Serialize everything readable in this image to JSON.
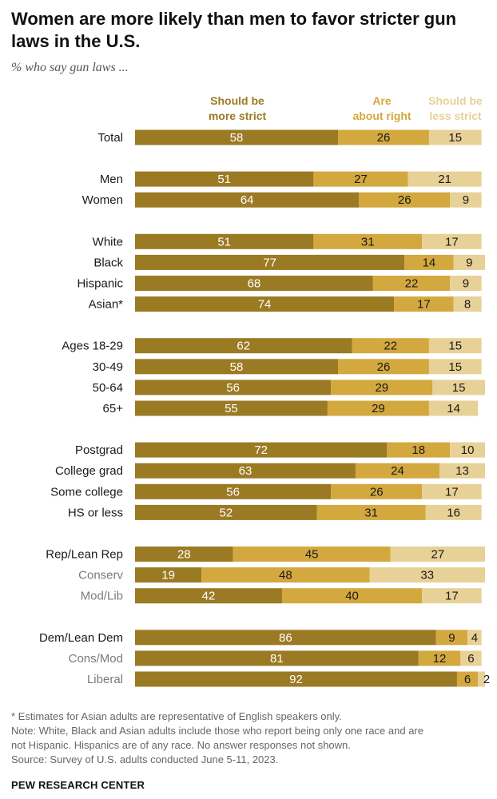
{
  "title": "Women are more likely than men to favor stricter gun laws in the U.S.",
  "subtitle": "% who say gun laws ...",
  "colors": {
    "strict": "#9b7a24",
    "right": "#d3a83e",
    "less": "#e8d197",
    "label_muted": "#7a7a7a"
  },
  "chart_data": {
    "type": "bar",
    "orientation": "horizontal",
    "stacked": true,
    "series": [
      {
        "name": "Should be more strict",
        "header": [
          "Should be",
          "more strict"
        ]
      },
      {
        "name": "Are about right",
        "header": [
          "Are",
          "about right"
        ]
      },
      {
        "name": "Should be less strict",
        "header": [
          "Should be",
          "less strict"
        ]
      }
    ],
    "rows": [
      {
        "label": "Total",
        "values": [
          58,
          26,
          15
        ],
        "group": 0,
        "muted": false
      },
      {
        "label": "Men",
        "values": [
          51,
          27,
          21
        ],
        "group": 1,
        "muted": false
      },
      {
        "label": "Women",
        "values": [
          64,
          26,
          9
        ],
        "group": 1,
        "muted": false
      },
      {
        "label": "White",
        "values": [
          51,
          31,
          17
        ],
        "group": 2,
        "muted": false
      },
      {
        "label": "Black",
        "values": [
          77,
          14,
          9
        ],
        "group": 2,
        "muted": false
      },
      {
        "label": "Hispanic",
        "values": [
          68,
          22,
          9
        ],
        "group": 2,
        "muted": false
      },
      {
        "label": "Asian*",
        "values": [
          74,
          17,
          8
        ],
        "group": 2,
        "muted": false
      },
      {
        "label": "Ages 18-29",
        "values": [
          62,
          22,
          15
        ],
        "group": 3,
        "muted": false
      },
      {
        "label": "30-49",
        "values": [
          58,
          26,
          15
        ],
        "group": 3,
        "muted": false
      },
      {
        "label": "50-64",
        "values": [
          56,
          29,
          15
        ],
        "group": 3,
        "muted": false
      },
      {
        "label": "65+",
        "values": [
          55,
          29,
          14
        ],
        "group": 3,
        "muted": false
      },
      {
        "label": "Postgrad",
        "values": [
          72,
          18,
          10
        ],
        "group": 4,
        "muted": false
      },
      {
        "label": "College grad",
        "values": [
          63,
          24,
          13
        ],
        "group": 4,
        "muted": false
      },
      {
        "label": "Some college",
        "values": [
          56,
          26,
          17
        ],
        "group": 4,
        "muted": false
      },
      {
        "label": "HS or less",
        "values": [
          52,
          31,
          16
        ],
        "group": 4,
        "muted": false
      },
      {
        "label": "Rep/Lean Rep",
        "values": [
          28,
          45,
          27
        ],
        "group": 5,
        "muted": false
      },
      {
        "label": "Conserv",
        "values": [
          19,
          48,
          33
        ],
        "group": 5,
        "muted": true
      },
      {
        "label": "Mod/Lib",
        "values": [
          42,
          40,
          17
        ],
        "group": 5,
        "muted": true
      },
      {
        "label": "Dem/Lean Dem",
        "values": [
          86,
          9,
          4
        ],
        "group": 6,
        "muted": false
      },
      {
        "label": "Cons/Mod",
        "values": [
          81,
          12,
          6
        ],
        "group": 6,
        "muted": true
      },
      {
        "label": "Liberal",
        "values": [
          92,
          6,
          2
        ],
        "group": 6,
        "muted": true
      }
    ]
  },
  "footnotes": [
    "* Estimates for Asian adults are representative of English speakers only.",
    "Note: White, Black and Asian adults include those who report being only one race and are",
    "not Hispanic. Hispanics are of any race. No answer responses not shown.",
    "Source: Survey of U.S. adults conducted June 5-11, 2023."
  ],
  "source_org": "PEW RESEARCH CENTER"
}
